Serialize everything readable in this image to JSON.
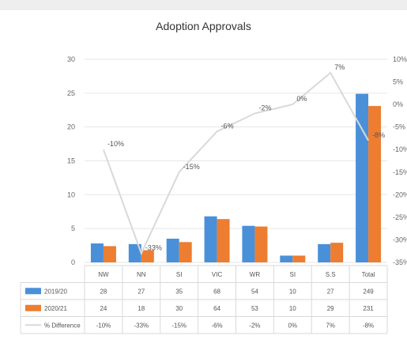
{
  "chart_data": {
    "type": "bar",
    "title": "Adoption Approvals",
    "categories": [
      "NW",
      "NN",
      "SI",
      "VIC",
      "WR",
      "SI",
      "S.S",
      "Total"
    ],
    "series": [
      {
        "name": "2019/20",
        "color": "#4a90d9",
        "values": [
          2.8,
          2.7,
          3.5,
          6.8,
          5.4,
          1.0,
          2.7,
          24.9
        ]
      },
      {
        "name": "2020/21",
        "color": "#ed7d31",
        "values": [
          2.4,
          1.8,
          3.0,
          6.4,
          5.3,
          1.0,
          2.9,
          23.1
        ]
      },
      {
        "name": "% Difference",
        "color": "#d9d9d9",
        "type": "line",
        "axis": "right",
        "values": [
          -10,
          -33,
          -15,
          -6,
          -2,
          0,
          7,
          -8
        ],
        "labels": [
          "-10%",
          "-33%",
          "-15%",
          "-6%",
          "-2%",
          "0%",
          "7%",
          "-8%"
        ]
      }
    ],
    "y_left": {
      "ylim": [
        0,
        30
      ],
      "ticks": [
        "0",
        "5",
        "10",
        "15",
        "20",
        "25",
        "30"
      ]
    },
    "y_right": {
      "ylim": [
        -35,
        10
      ],
      "ticks": [
        "10%",
        "5%",
        "0%",
        "-5%",
        "-10%",
        "-15%",
        "-20%",
        "-25%",
        "-30%",
        "-35%"
      ]
    },
    "grid": true,
    "legend": "table",
    "table": {
      "rows": [
        {
          "series": "2019/20",
          "cells": [
            "28",
            "27",
            "35",
            "68",
            "54",
            "10",
            "27",
            "249"
          ]
        },
        {
          "series": "2020/21",
          "cells": [
            "24",
            "18",
            "30",
            "64",
            "53",
            "10",
            "29",
            "231"
          ]
        },
        {
          "series": "% Difference",
          "cells": [
            "-10%",
            "-33%",
            "-15%",
            "-6%",
            "-2%",
            "0%",
            "7%",
            "-8%"
          ]
        }
      ]
    }
  }
}
